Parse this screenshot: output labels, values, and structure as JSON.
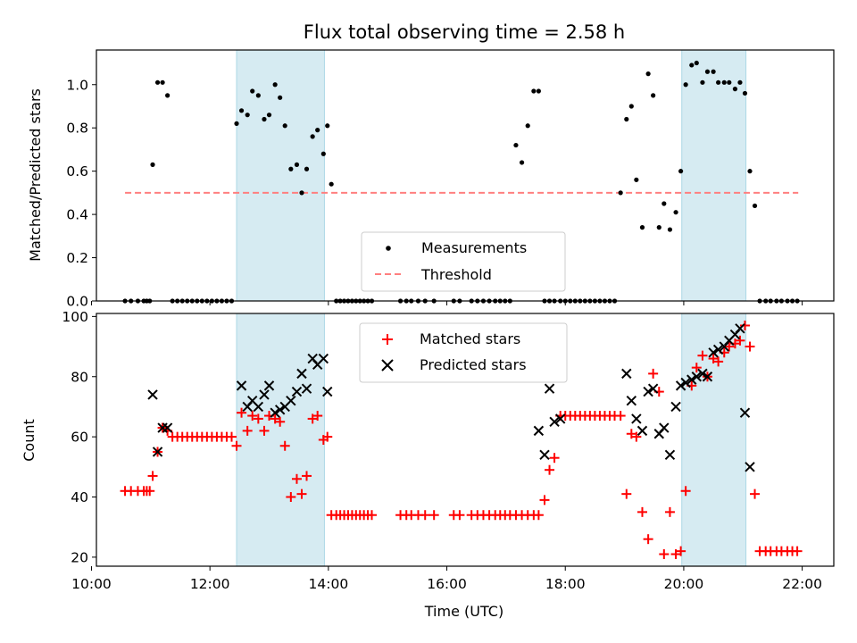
{
  "chart_data": [
    {
      "type": "scatter",
      "title": "Flux total observing time = 2.58 h",
      "ylabel": "Matched/Predicted stars",
      "xlim": [
        "10:05",
        "22:32"
      ],
      "ylim": [
        0,
        1.16
      ],
      "yticks": [
        "0.0",
        "0.2",
        "0.4",
        "0.6",
        "0.8",
        "1.0"
      ],
      "shaded_intervals": [
        [
          "12:27",
          "13:56"
        ],
        [
          "19:58",
          "21:03"
        ]
      ],
      "legend": {
        "placement": "lower-center",
        "entries": [
          "Measurements",
          "Threshold"
        ]
      },
      "threshold": {
        "name": "Threshold",
        "x": [
          "10:34",
          "21:56"
        ],
        "y": 0.5,
        "color": "#ff7f7f"
      },
      "measurements": {
        "name": "Measurements",
        "color": "#000000",
        "x": [
          "10:34",
          "10:40",
          "10:47",
          "10:53",
          "10:56",
          "10:59",
          "11:02",
          "11:07",
          "11:12",
          "11:17",
          "11:22",
          "11:27",
          "11:32",
          "11:37",
          "11:42",
          "11:47",
          "11:52",
          "11:57",
          "12:02",
          "12:07",
          "12:12",
          "12:17",
          "12:22",
          "12:27",
          "12:32",
          "12:38",
          "12:43",
          "12:49",
          "12:55",
          "13:00",
          "13:06",
          "13:11",
          "13:16",
          "13:22",
          "13:28",
          "13:33",
          "13:38",
          "13:44",
          "13:49",
          "13:55",
          "13:59",
          "14:03",
          "14:08",
          "14:12",
          "14:16",
          "14:20",
          "14:24",
          "14:28",
          "14:32",
          "14:36",
          "14:40",
          "14:44",
          "15:13",
          "15:19",
          "15:24",
          "15:31",
          "15:38",
          "15:47",
          "16:07",
          "16:13",
          "16:25",
          "16:31",
          "16:37",
          "16:43",
          "16:49",
          "16:54",
          "16:59",
          "17:04",
          "17:10",
          "17:16",
          "17:22",
          "17:28",
          "17:33",
          "17:39",
          "17:44",
          "17:49",
          "17:55",
          "18:00",
          "18:05",
          "18:10",
          "18:15",
          "18:20",
          "18:25",
          "18:30",
          "18:35",
          "18:40",
          "18:45",
          "18:50",
          "18:56",
          "19:02",
          "19:07",
          "19:12",
          "19:18",
          "19:24",
          "19:29",
          "19:35",
          "19:40",
          "19:46",
          "19:52",
          "19:57",
          "20:02",
          "20:08",
          "20:13",
          "20:19",
          "20:24",
          "20:30",
          "20:35",
          "20:41",
          "20:46",
          "20:52",
          "20:57",
          "21:02",
          "21:07",
          "21:12",
          "21:17",
          "21:23",
          "21:28",
          "21:34",
          "21:39",
          "21:45",
          "21:50",
          "21:55"
        ],
        "y": [
          0,
          0,
          0,
          0,
          0,
          0,
          0.63,
          1.01,
          1.01,
          0.95,
          0,
          0,
          0,
          0,
          0,
          0,
          0,
          0,
          0,
          0,
          0,
          0,
          0,
          0.82,
          0.88,
          0.86,
          0.97,
          0.95,
          0.84,
          0.86,
          1.0,
          0.94,
          0.81,
          0.61,
          0.63,
          0.5,
          0.61,
          0.76,
          0.79,
          0.68,
          0.81,
          0.54,
          0,
          0,
          0,
          0,
          0,
          0,
          0,
          0,
          0,
          0,
          0,
          0,
          0,
          0,
          0,
          0,
          0,
          0,
          0,
          0,
          0,
          0,
          0,
          0,
          0,
          0,
          0.72,
          0.64,
          0.81,
          0.97,
          0.97,
          0,
          0,
          0,
          0,
          0,
          0,
          0,
          0,
          0,
          0,
          0,
          0,
          0,
          0,
          0,
          0.5,
          0.84,
          0.9,
          0.56,
          0.34,
          1.05,
          0.95,
          0.34,
          0.45,
          0.33,
          0.41,
          0.6,
          1.0,
          1.09,
          1.1,
          1.01,
          1.06,
          1.06,
          1.01,
          1.01,
          1.01,
          0.98,
          1.01,
          0.96,
          0.6,
          0.44,
          0,
          0,
          0,
          0,
          0,
          0,
          0,
          0
        ]
      }
    },
    {
      "type": "scatter",
      "xlabel": "Time (UTC)",
      "ylabel": "Count",
      "xlim": [
        "10:05",
        "22:32"
      ],
      "xticks": [
        "10:00",
        "12:00",
        "14:00",
        "16:00",
        "18:00",
        "20:00",
        "22:00"
      ],
      "ylim": [
        17,
        101
      ],
      "yticks": [
        "20",
        "40",
        "60",
        "80",
        "100"
      ],
      "shaded_intervals": [
        [
          "12:27",
          "13:56"
        ],
        [
          "19:58",
          "21:03"
        ]
      ],
      "legend": {
        "placement": "top-center",
        "entries": [
          "Matched stars",
          "Predicted stars"
        ]
      },
      "matched": {
        "name": "Matched stars",
        "color": "#ff0000",
        "x": [
          "10:34",
          "10:40",
          "10:47",
          "10:53",
          "10:56",
          "10:59",
          "11:02",
          "11:07",
          "11:12",
          "11:17",
          "11:22",
          "11:27",
          "11:32",
          "11:37",
          "11:42",
          "11:47",
          "11:52",
          "11:57",
          "12:02",
          "12:07",
          "12:12",
          "12:17",
          "12:22",
          "12:27",
          "12:32",
          "12:38",
          "12:43",
          "12:49",
          "12:55",
          "13:00",
          "13:06",
          "13:11",
          "13:16",
          "13:22",
          "13:28",
          "13:33",
          "13:38",
          "13:44",
          "13:49",
          "13:55",
          "13:59",
          "14:03",
          "14:08",
          "14:12",
          "14:16",
          "14:20",
          "14:24",
          "14:28",
          "14:32",
          "14:36",
          "14:40",
          "14:44",
          "15:13",
          "15:19",
          "15:24",
          "15:31",
          "15:38",
          "15:47",
          "16:07",
          "16:13",
          "16:25",
          "16:31",
          "16:37",
          "16:43",
          "16:49",
          "16:54",
          "16:59",
          "17:04",
          "17:10",
          "17:16",
          "17:22",
          "17:28",
          "17:33",
          "17:39",
          "17:44",
          "17:49",
          "17:55",
          "18:00",
          "18:05",
          "18:10",
          "18:15",
          "18:20",
          "18:25",
          "18:30",
          "18:35",
          "18:40",
          "18:45",
          "18:50",
          "18:56",
          "19:02",
          "19:07",
          "19:12",
          "19:18",
          "19:24",
          "19:29",
          "19:35",
          "19:40",
          "19:46",
          "19:52",
          "19:57",
          "20:02",
          "20:08",
          "20:13",
          "20:19",
          "20:24",
          "20:30",
          "20:35",
          "20:41",
          "20:46",
          "20:52",
          "20:57",
          "21:02",
          "21:07",
          "21:12",
          "21:17",
          "21:23",
          "21:28",
          "21:34",
          "21:39",
          "21:45",
          "21:50",
          "21:55"
        ],
        "y": [
          42,
          42,
          42,
          42,
          42,
          42,
          47,
          55,
          63,
          62,
          60,
          60,
          60,
          60,
          60,
          60,
          60,
          60,
          60,
          60,
          60,
          60,
          60,
          57,
          68,
          62,
          67,
          66,
          62,
          67,
          66,
          65,
          57,
          40,
          46,
          41,
          47,
          66,
          67,
          59,
          60,
          34,
          34,
          34,
          34,
          34,
          34,
          34,
          34,
          34,
          34,
          34,
          34,
          34,
          34,
          34,
          34,
          34,
          34,
          34,
          34,
          34,
          34,
          34,
          34,
          34,
          34,
          34,
          34,
          34,
          34,
          34,
          34,
          39,
          49,
          53,
          67,
          67,
          67,
          67,
          67,
          67,
          67,
          67,
          67,
          67,
          67,
          67,
          67,
          41,
          61,
          60,
          35,
          26,
          81,
          75,
          21,
          35,
          21,
          22,
          42,
          77,
          83,
          87,
          80,
          86,
          85,
          88,
          90,
          91,
          92,
          97,
          90,
          41,
          22,
          22,
          22,
          22,
          22,
          22,
          22,
          22
        ]
      },
      "predicted": {
        "name": "Predicted stars",
        "color": "#000000",
        "x": [
          "11:02",
          "11:07",
          "11:12",
          "11:17",
          "12:32",
          "12:38",
          "12:43",
          "12:49",
          "12:55",
          "13:00",
          "13:06",
          "13:11",
          "13:16",
          "13:22",
          "13:28",
          "13:33",
          "13:38",
          "13:44",
          "13:49",
          "13:55",
          "13:59",
          "17:33",
          "17:39",
          "17:44",
          "17:49",
          "17:55",
          "19:02",
          "19:07",
          "19:12",
          "19:18",
          "19:24",
          "19:29",
          "19:35",
          "19:40",
          "19:46",
          "19:52",
          "19:57",
          "20:02",
          "20:08",
          "20:13",
          "20:19",
          "20:24",
          "20:30",
          "20:35",
          "20:41",
          "20:46",
          "20:52",
          "20:57",
          "21:02",
          "21:07"
        ],
        "y": [
          74,
          55,
          63,
          63,
          77,
          70,
          72,
          70,
          74,
          77,
          68,
          69,
          70,
          72,
          75,
          81,
          76,
          86,
          84,
          86,
          75,
          62,
          54,
          76,
          65,
          66,
          81,
          72,
          66,
          62,
          75,
          76,
          61,
          63,
          54,
          70,
          77,
          78,
          79,
          80,
          81,
          80,
          88,
          89,
          90,
          92,
          94,
          96,
          68,
          50
        ]
      }
    }
  ]
}
